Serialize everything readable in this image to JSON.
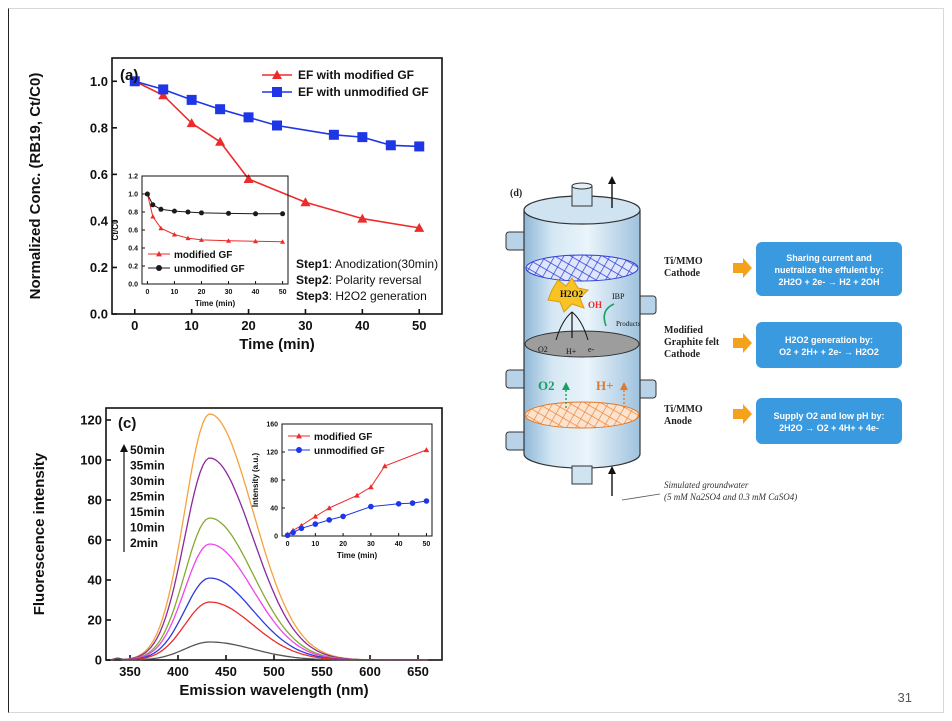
{
  "page_number": "31",
  "colors": {
    "red": "#ee2b2b",
    "blue": "#1f36e6",
    "black": "#1a1a1a",
    "panel_blue": "#3a9ae0",
    "arrow_orange": "#f4a21c"
  },
  "chart_data": [
    {
      "type": "line",
      "panel": "(a)",
      "xlabel": "Time (min)",
      "ylabel": "Normalized Conc. (RB19, Ct/C0)",
      "xlim": [
        -4,
        54
      ],
      "ylim": [
        0,
        1.1
      ],
      "xticks": [
        "0",
        "10",
        "20",
        "30",
        "40",
        "50"
      ],
      "yticks": [
        "0.0",
        "0.2",
        "0.4",
        "0.6",
        "0.8",
        "1.0"
      ],
      "legend": "top-right",
      "series": [
        {
          "name": "EF with modified GF",
          "marker": "triangle",
          "color": "#ee2b2b",
          "x": [
            0,
            5,
            10,
            15,
            20,
            30,
            40,
            50
          ],
          "y": [
            1.0,
            0.94,
            0.82,
            0.74,
            0.58,
            0.48,
            0.41,
            0.37
          ]
        },
        {
          "name": "EF with unmodified GF",
          "marker": "square",
          "color": "#1f36e6",
          "x": [
            0,
            5,
            10,
            15,
            20,
            25,
            35,
            40,
            45,
            50
          ],
          "y": [
            1.0,
            0.965,
            0.92,
            0.88,
            0.845,
            0.81,
            0.77,
            0.76,
            0.725,
            0.72
          ]
        }
      ],
      "annotations": [
        {
          "bold": "Step1",
          "text": ": Anodization(30min)"
        },
        {
          "bold": "Step2",
          "text": ": Polarity reversal"
        },
        {
          "bold": "Step3",
          "text": ": H2O2 generation"
        }
      ]
    },
    {
      "type": "line",
      "panel": "inset-a",
      "xlabel": "Time (min)",
      "ylabel": "Ct/C0",
      "xlim": [
        -2,
        52
      ],
      "ylim": [
        0,
        1.2
      ],
      "xticks": [
        "0",
        "10",
        "20",
        "30",
        "40",
        "50"
      ],
      "yticks": [
        "0.0",
        "0.2",
        "0.4",
        "0.6",
        "0.8",
        "1.0",
        "1.2"
      ],
      "legend": "bottom-left",
      "series": [
        {
          "name": "modified GF",
          "marker": "triangle",
          "color": "#ee2b2b",
          "x": [
            0,
            2,
            5,
            10,
            15,
            20,
            30,
            40,
            50
          ],
          "y": [
            1.0,
            0.75,
            0.62,
            0.55,
            0.51,
            0.49,
            0.48,
            0.475,
            0.47
          ]
        },
        {
          "name": "unmodified GF",
          "marker": "circle",
          "color": "#1a1a1a",
          "x": [
            0,
            2,
            5,
            10,
            15,
            20,
            30,
            40,
            50
          ],
          "y": [
            1.0,
            0.88,
            0.83,
            0.81,
            0.8,
            0.79,
            0.785,
            0.78,
            0.78
          ]
        }
      ]
    },
    {
      "type": "line",
      "panel": "(c)",
      "xlabel": "Emission wavelength (nm)",
      "ylabel": "Fluorescence intensity",
      "xlim": [
        325,
        675
      ],
      "ylim": [
        0,
        126
      ],
      "xticks": [
        "350",
        "400",
        "450",
        "500",
        "550",
        "600",
        "650"
      ],
      "yticks": [
        "0",
        "20",
        "40",
        "60",
        "80",
        "100",
        "120"
      ],
      "legend": "top-left",
      "curve_peak_nm": 433,
      "series": [
        {
          "name": "50min",
          "color": "#f6a23c",
          "peak": 123
        },
        {
          "name": "35min",
          "color": "#8a2a9c",
          "peak": 101
        },
        {
          "name": "30min",
          "color": "#86a830",
          "peak": 71
        },
        {
          "name": "25min",
          "color": "#ee44ee",
          "peak": 58
        },
        {
          "name": "15min",
          "color": "#2a3ae0",
          "peak": 41
        },
        {
          "name": "10min",
          "color": "#ee2b2b",
          "peak": 29
        },
        {
          "name": "2min",
          "color": "#555555",
          "peak": 9
        }
      ]
    },
    {
      "type": "line",
      "panel": "inset-c",
      "xlabel": "Time (min)",
      "ylabel": "Intensity (a.u.)",
      "xlim": [
        -2,
        52
      ],
      "ylim": [
        0,
        160
      ],
      "xticks": [
        "0",
        "10",
        "20",
        "30",
        "40",
        "50"
      ],
      "yticks": [
        "0",
        "40",
        "80",
        "120",
        "160"
      ],
      "legend": "top-left",
      "series": [
        {
          "name": "modified GF",
          "marker": "triangle",
          "color": "#ee2b2b",
          "x": [
            0,
            2,
            5,
            10,
            15,
            25,
            30,
            35,
            50
          ],
          "y": [
            2,
            8,
            15,
            28,
            40,
            58,
            70,
            100,
            123
          ]
        },
        {
          "name": "unmodified GF",
          "marker": "circle",
          "color": "#1f36e6",
          "x": [
            0,
            2,
            5,
            10,
            15,
            20,
            30,
            40,
            45,
            50
          ],
          "y": [
            1,
            5,
            11,
            17,
            23,
            28,
            42,
            46,
            47,
            50
          ]
        }
      ]
    }
  ],
  "diagram": {
    "panel": "(d)",
    "labels": {
      "cathode_top": [
        "Ti/MMO",
        "Cathode"
      ],
      "modified": [
        "Modified",
        "Graphite felt",
        "Cathode"
      ],
      "anode": [
        "Ti/MMO",
        "Anode"
      ],
      "h2o2": "H2O2",
      "oh": "OH",
      "ibp": "IBP",
      "products": "Products",
      "o2_small": "O2",
      "h_small": "H+",
      "e_small": "e-",
      "o2_big": "O2",
      "h_big": "H+",
      "feed": [
        "Simulated groundwater",
        "(5 mM Na2SO4 and 0.3 mM CaSO4)"
      ]
    },
    "boxes": [
      {
        "line1": "Sharing current and",
        "line2": "nuetralize the effulent by:",
        "eq": "2H2O + 2e- → H2 + 2OH"
      },
      {
        "line1": "H2O2 generation by:",
        "eq": "O2 + 2H+ + 2e- → H2O2"
      },
      {
        "line1": "Supply O2 and low pH by:",
        "eq": "2H2O → O2 + 4H+ + 4e-"
      }
    ]
  }
}
